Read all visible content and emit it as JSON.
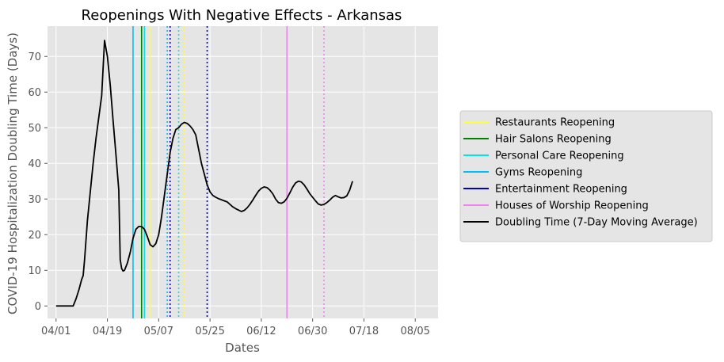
{
  "chart_data": {
    "type": "line",
    "title": "Reopenings With Negative Effects - Arkansas",
    "xlabel": "Dates",
    "ylabel": "COVID-19 Hospitalization Doubling Time (Days)",
    "x_range": [
      "2020-03-29",
      "2020-08-13"
    ],
    "ylim": [
      -3.5,
      78.5
    ],
    "x_ticks": [
      {
        "date": "2020-04-01",
        "label": "04/01"
      },
      {
        "date": "2020-04-19",
        "label": "04/19"
      },
      {
        "date": "2020-05-07",
        "label": "05/07"
      },
      {
        "date": "2020-05-25",
        "label": "05/25"
      },
      {
        "date": "2020-06-12",
        "label": "06/12"
      },
      {
        "date": "2020-06-30",
        "label": "06/30"
      },
      {
        "date": "2020-07-18",
        "label": "07/18"
      },
      {
        "date": "2020-08-05",
        "label": "08/05"
      }
    ],
    "y_ticks": [
      0,
      10,
      20,
      30,
      40,
      50,
      60,
      70
    ],
    "grid": true,
    "legend_position": "right",
    "series": [
      {
        "name": "Doubling Time (7-Day Moving Average)",
        "color": "#000000",
        "points": [
          [
            "2020-04-01",
            0
          ],
          [
            "2020-04-06",
            0
          ],
          [
            "2020-04-07",
            0
          ],
          [
            "2020-04-08",
            2
          ],
          [
            "2020-04-09",
            4.5
          ],
          [
            "2020-04-10",
            7.5
          ],
          [
            "2020-04-10T12:00",
            8.5
          ],
          [
            "2020-04-11",
            13
          ],
          [
            "2020-04-12",
            24
          ],
          [
            "2020-04-13",
            32
          ],
          [
            "2020-04-14",
            40
          ],
          [
            "2020-04-15",
            47
          ],
          [
            "2020-04-16",
            53
          ],
          [
            "2020-04-17",
            59
          ],
          [
            "2020-04-18",
            74.5
          ],
          [
            "2020-04-19",
            70
          ],
          [
            "2020-04-20",
            62
          ],
          [
            "2020-04-21",
            52
          ],
          [
            "2020-04-22",
            42.5
          ],
          [
            "2020-04-23",
            32.5
          ],
          [
            "2020-04-23T12:00",
            13
          ],
          [
            "2020-04-24",
            10.5
          ],
          [
            "2020-04-24T12:00",
            9.8
          ],
          [
            "2020-04-25",
            10
          ],
          [
            "2020-04-26",
            12
          ],
          [
            "2020-04-27",
            15
          ],
          [
            "2020-04-28",
            19
          ],
          [
            "2020-04-29",
            21.5
          ],
          [
            "2020-04-30",
            22.3
          ],
          [
            "2020-05-01",
            22.3
          ],
          [
            "2020-05-02",
            21.5
          ],
          [
            "2020-05-03",
            19.5
          ],
          [
            "2020-05-04",
            17.2
          ],
          [
            "2020-05-05",
            16.6
          ],
          [
            "2020-05-06",
            17.5
          ],
          [
            "2020-05-07",
            20
          ],
          [
            "2020-05-08",
            25
          ],
          [
            "2020-05-09",
            31
          ],
          [
            "2020-05-10",
            37
          ],
          [
            "2020-05-11",
            43
          ],
          [
            "2020-05-12",
            47
          ],
          [
            "2020-05-13",
            49.5
          ],
          [
            "2020-05-14",
            50
          ],
          [
            "2020-05-15",
            51
          ],
          [
            "2020-05-16",
            51.5
          ],
          [
            "2020-05-17",
            51.2
          ],
          [
            "2020-05-18",
            50.5
          ],
          [
            "2020-05-19",
            49.5
          ],
          [
            "2020-05-20",
            48
          ],
          [
            "2020-05-21",
            44
          ],
          [
            "2020-05-22",
            40
          ],
          [
            "2020-05-23",
            37
          ],
          [
            "2020-05-24",
            34
          ],
          [
            "2020-05-25",
            32
          ],
          [
            "2020-05-26",
            31
          ],
          [
            "2020-05-27",
            30.5
          ],
          [
            "2020-05-28",
            30.1
          ],
          [
            "2020-05-29",
            29.8
          ],
          [
            "2020-05-30",
            29.5
          ],
          [
            "2020-05-31",
            29.2
          ],
          [
            "2020-06-01",
            28.5
          ],
          [
            "2020-06-02",
            27.8
          ],
          [
            "2020-06-03",
            27.3
          ],
          [
            "2020-06-04",
            26.9
          ],
          [
            "2020-06-05",
            26.5
          ],
          [
            "2020-06-06",
            26.8
          ],
          [
            "2020-06-07",
            27.5
          ],
          [
            "2020-06-08",
            28.5
          ],
          [
            "2020-06-09",
            29.7
          ],
          [
            "2020-06-10",
            31
          ],
          [
            "2020-06-11",
            32.2
          ],
          [
            "2020-06-12",
            33
          ],
          [
            "2020-06-13",
            33.4
          ],
          [
            "2020-06-14",
            33.2
          ],
          [
            "2020-06-15",
            32.5
          ],
          [
            "2020-06-16",
            31.5
          ],
          [
            "2020-06-17",
            30
          ],
          [
            "2020-06-18",
            29
          ],
          [
            "2020-06-19",
            28.8
          ],
          [
            "2020-06-20",
            29.2
          ],
          [
            "2020-06-21",
            30.2
          ],
          [
            "2020-06-22",
            31.7
          ],
          [
            "2020-06-23",
            33.3
          ],
          [
            "2020-06-24",
            34.5
          ],
          [
            "2020-06-25",
            35
          ],
          [
            "2020-06-26",
            34.8
          ],
          [
            "2020-06-27",
            34
          ],
          [
            "2020-06-28",
            32.8
          ],
          [
            "2020-06-29",
            31.5
          ],
          [
            "2020-06-30",
            30.5
          ],
          [
            "2020-07-01",
            29.5
          ],
          [
            "2020-07-02",
            28.6
          ],
          [
            "2020-07-03",
            28.3
          ],
          [
            "2020-07-04",
            28.5
          ],
          [
            "2020-07-05",
            29
          ],
          [
            "2020-07-06",
            29.7
          ],
          [
            "2020-07-07",
            30.5
          ],
          [
            "2020-07-08",
            31
          ],
          [
            "2020-07-09",
            30.6
          ],
          [
            "2020-07-10",
            30.3
          ],
          [
            "2020-07-11",
            30.4
          ],
          [
            "2020-07-12",
            30.9
          ],
          [
            "2020-07-13",
            32.5
          ],
          [
            "2020-07-14",
            35
          ]
        ]
      }
    ],
    "event_lines": [
      {
        "name": "Restaurants Reopening",
        "color": "#ffff33",
        "style": "solid",
        "date": "2020-05-04",
        "in_legend": true
      },
      {
        "name": "Restaurants Reopening",
        "color": "#ffff33",
        "style": "dotted",
        "date": "2020-05-16",
        "in_legend": false
      },
      {
        "name": "Hair Salons Reopening",
        "color": "#008000",
        "style": "solid",
        "date": "2020-05-01",
        "in_legend": true
      },
      {
        "name": "Personal Care Reopening",
        "color": "#00e5e5",
        "style": "solid",
        "date": "2020-05-02",
        "in_legend": true
      },
      {
        "name": "Personal Care Reopening",
        "color": "#00e5e5",
        "style": "dotted",
        "date": "2020-05-14",
        "in_legend": false
      },
      {
        "name": "Gyms Reopening",
        "color": "#00bfff",
        "style": "solid",
        "date": "2020-04-28",
        "in_legend": true
      },
      {
        "name": "Gyms Reopening",
        "color": "#00bfff",
        "style": "dotted",
        "date": "2020-05-10",
        "in_legend": false
      },
      {
        "name": "Entertainment Reopening",
        "color": "#0000cc",
        "style": "dotted",
        "date": "2020-05-11",
        "in_legend": true
      },
      {
        "name": "Entertainment Reopening",
        "color": "#0000cc",
        "style": "dotted",
        "date": "2020-05-24",
        "in_legend": false
      },
      {
        "name": "Houses of Worship Reopening",
        "color": "#ee82ee",
        "style": "solid",
        "date": "2020-06-21",
        "in_legend": true
      },
      {
        "name": "Houses of Worship Reopening",
        "color": "#ee82ee",
        "style": "dotted",
        "date": "2020-07-04",
        "in_legend": false
      }
    ],
    "legend": [
      {
        "label": "Restaurants Reopening",
        "color": "#ffff33"
      },
      {
        "label": "Hair Salons Reopening",
        "color": "#008000"
      },
      {
        "label": "Personal Care Reopening",
        "color": "#00e5e5"
      },
      {
        "label": "Gyms Reopening",
        "color": "#00bfff"
      },
      {
        "label": "Entertainment Reopening",
        "color": "#0000cc"
      },
      {
        "label": "Houses of Worship Reopening",
        "color": "#ee82ee"
      },
      {
        "label": "Doubling Time (7-Day Moving Average)",
        "color": "#000000"
      }
    ],
    "colors": {
      "plot_background": "#e5e5e5",
      "grid": "#ffffff"
    }
  }
}
